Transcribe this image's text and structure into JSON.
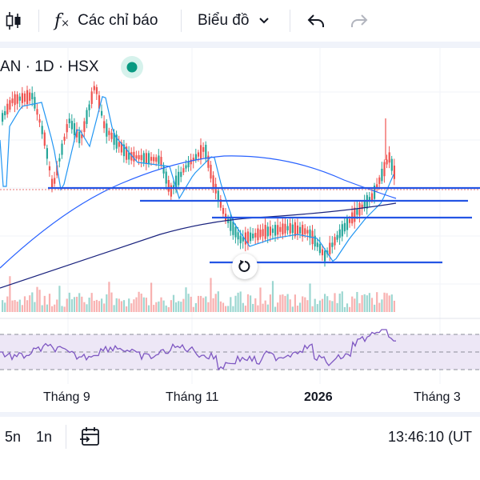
{
  "toolbar": {
    "indicators_label": "Các chỉ báo",
    "chart_type_label": "Biểu đồ"
  },
  "symbol": {
    "text": "AN · 1D · HSX"
  },
  "colors": {
    "up": "#26a69a",
    "down": "#ef5350",
    "ma_fast": "#2196f3",
    "ma_slow": "#2962ff",
    "support_line": "#2455e4",
    "rsi": "#7e57c2",
    "rsi_band": "#ede7f6",
    "status_dot": "#089981"
  },
  "xaxis": {
    "labels": [
      "Tháng 9",
      "Tháng 11",
      "2026",
      "Tháng 3"
    ]
  },
  "bottom": {
    "range_5y": "5n",
    "range_1y": "1n",
    "time": "13:46:10 (UT"
  },
  "icons": [
    "candlestick-icon",
    "fx-icon",
    "chevron-down-icon",
    "undo-icon",
    "redo-icon",
    "reset-icon",
    "calendar-range-icon"
  ]
}
